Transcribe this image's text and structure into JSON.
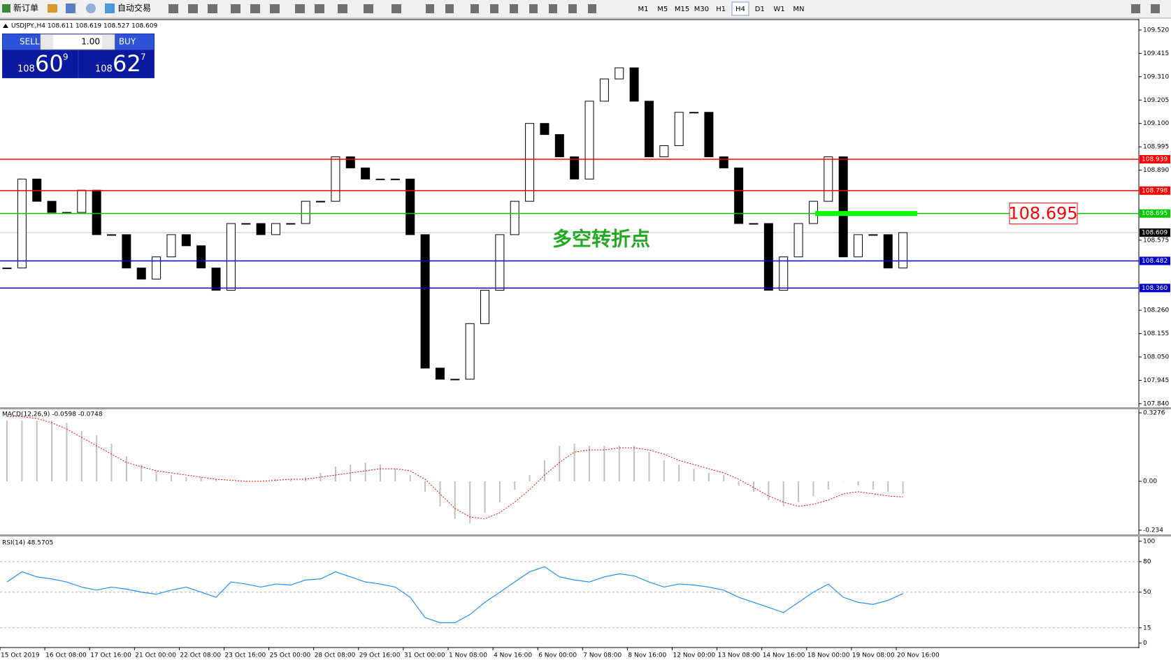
{
  "toolbar": {
    "new_order": "新订单",
    "auto_trading": "自动交易",
    "timeframes": [
      "M1",
      "M5",
      "M15",
      "M30",
      "H1",
      "H4",
      "D1",
      "W1",
      "MN"
    ],
    "active_timeframe": "H4"
  },
  "trade_panel": {
    "sell": "SELL",
    "buy": "BUY",
    "lots": "1.00",
    "bid": {
      "big": "108",
      "main": "60",
      "small": "9"
    },
    "ask": {
      "big": "108",
      "main": "62",
      "small": "7"
    }
  },
  "time_axis": {
    "labels": [
      "15 Oct 2019",
      "16 Oct 08:00",
      "17 Oct 16:00",
      "21 Oct 00:00",
      "22 Oct 08:00",
      "23 Oct 16:00",
      "25 Oct 00:00",
      "28 Oct 08:00",
      "29 Oct 16:00",
      "31 Oct 00:00",
      "1 Nov 08:00",
      "4 Nov 16:00",
      "6 Nov 00:00",
      "7 Nov 08:00",
      "8 Nov 16:00",
      "12 Nov 00:00",
      "13 Nov 08:00",
      "14 Nov 16:00",
      "18 Nov 00:00",
      "19 Nov 08:00",
      "20 Nov 16:00"
    ]
  },
  "chart_data": [
    {
      "type": "candlestick",
      "title": "USDJPY.,H4 108.611 108.619 108.527 108.609",
      "closes": [
        108.45,
        108.85,
        108.75,
        108.7,
        108.7,
        108.8,
        108.6,
        108.6,
        108.45,
        108.4,
        108.5,
        108.6,
        108.55,
        108.45,
        108.35,
        108.65,
        108.65,
        108.6,
        108.65,
        108.65,
        108.75,
        108.75,
        108.95,
        108.9,
        108.85,
        108.85,
        108.85,
        108.6,
        108.0,
        107.95,
        107.95,
        108.2,
        108.35,
        108.6,
        108.75,
        109.1,
        109.05,
        108.95,
        108.85,
        109.2,
        109.3,
        109.35,
        109.2,
        108.95,
        109.0,
        109.15,
        109.15,
        108.95,
        108.9,
        108.65,
        108.65,
        108.35,
        108.5,
        108.65,
        108.75,
        108.95,
        108.5,
        108.6,
        108.6,
        108.45,
        108.609
      ],
      "ylim": [
        107.824,
        109.567
      ],
      "yticks": [
        {
          "value": 109.52,
          "label": "109.520"
        },
        109.415,
        {
          "value": 109.31,
          "label": "109.310"
        },
        109.205,
        {
          "value": 109.1,
          "label": "109.100"
        },
        108.995,
        {
          "value": 108.89,
          "label": "108.890"
        },
        108.575,
        {
          "value": 108.26,
          "label": "108.260"
        },
        108.155,
        {
          "value": 108.05,
          "label": "108.050"
        },
        107.945,
        {
          "value": 107.84,
          "label": "107.840"
        }
      ],
      "levels": [
        {
          "value": 108.939,
          "color": "#ff0000"
        },
        {
          "value": 108.798,
          "color": "#ff0000"
        },
        {
          "value": 108.695,
          "color": "#00c800"
        },
        {
          "value": 108.482,
          "color": "#0000c8"
        },
        {
          "value": 108.36,
          "label": "108.360",
          "color": "#0000c8"
        }
      ],
      "current_price": 108.609,
      "annotation": "多空转折点"
    },
    {
      "type": "macd",
      "title": "MACD(12,26,9) -0.0598 -0.0748",
      "histogram": [
        0.29,
        0.29,
        0.29,
        0.29,
        0.28,
        0.24,
        0.22,
        0.18,
        0.12,
        0.08,
        0.05,
        0.03,
        0.02,
        0.02,
        0.01,
        0.0,
        -0.005,
        0.0,
        0.01,
        0.01,
        0.02,
        0.04,
        0.07,
        0.08,
        0.09,
        0.08,
        0.06,
        0.03,
        -0.05,
        -0.12,
        -0.18,
        -0.2,
        -0.15,
        -0.1,
        -0.04,
        0.03,
        0.1,
        0.17,
        0.18,
        0.17,
        0.17,
        0.17,
        0.17,
        0.14,
        0.1,
        0.08,
        0.06,
        0.04,
        0.03,
        -0.02,
        -0.05,
        -0.09,
        -0.12,
        -0.1,
        -0.07,
        -0.04,
        0.0,
        -0.02,
        -0.04,
        -0.05,
        -0.06
      ],
      "signal": [
        0.31,
        0.31,
        0.3,
        0.28,
        0.25,
        0.21,
        0.17,
        0.13,
        0.09,
        0.07,
        0.05,
        0.04,
        0.03,
        0.02,
        0.01,
        0.005,
        0.0,
        0.0,
        0.005,
        0.01,
        0.01,
        0.02,
        0.03,
        0.04,
        0.05,
        0.06,
        0.06,
        0.05,
        0.01,
        -0.06,
        -0.13,
        -0.17,
        -0.18,
        -0.15,
        -0.1,
        -0.04,
        0.03,
        0.09,
        0.14,
        0.15,
        0.15,
        0.16,
        0.16,
        0.15,
        0.13,
        0.1,
        0.08,
        0.06,
        0.04,
        0.01,
        -0.03,
        -0.07,
        -0.1,
        -0.12,
        -0.11,
        -0.09,
        -0.06,
        -0.05,
        -0.06,
        -0.07,
        -0.075
      ],
      "histogram_color": "#c0c0c0",
      "signal_color": "#ff0000",
      "ylim": [
        -0.254,
        0.341
      ],
      "yticks": [
        0.3276,
        {
          "value": 0,
          "label": "0.00"
        },
        -0.234
      ]
    },
    {
      "type": "rsi",
      "title": "RSI(14) 48.5705",
      "values": [
        60,
        70,
        65,
        63,
        60,
        55,
        52,
        55,
        53,
        50,
        48,
        52,
        55,
        50,
        45,
        60,
        58,
        55,
        58,
        57,
        62,
        63,
        70,
        65,
        60,
        58,
        55,
        45,
        25,
        20,
        20,
        28,
        40,
        50,
        60,
        70,
        75,
        65,
        62,
        60,
        65,
        68,
        66,
        60,
        55,
        58,
        57,
        55,
        52,
        45,
        40,
        35,
        30,
        40,
        50,
        58,
        45,
        40,
        38,
        42,
        48.57
      ],
      "color": "#1e90ff",
      "ylim": [
        -3,
        104
      ],
      "yticks": [
        100,
        80,
        50,
        15,
        0
      ]
    }
  ]
}
